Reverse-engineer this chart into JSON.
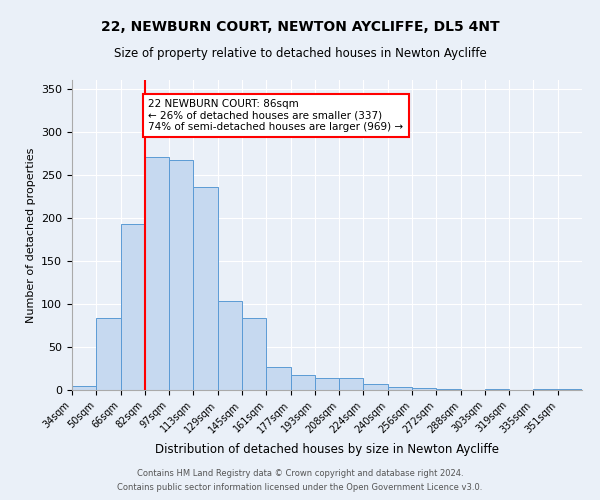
{
  "title": "22, NEWBURN COURT, NEWTON AYCLIFFE, DL5 4NT",
  "subtitle": "Size of property relative to detached houses in Newton Aycliffe",
  "xlabel": "Distribution of detached houses by size in Newton Aycliffe",
  "ylabel": "Number of detached properties",
  "bin_labels": [
    "34sqm",
    "50sqm",
    "66sqm",
    "82sqm",
    "97sqm",
    "113sqm",
    "129sqm",
    "145sqm",
    "161sqm",
    "177sqm",
    "193sqm",
    "208sqm",
    "224sqm",
    "240sqm",
    "256sqm",
    "272sqm",
    "288sqm",
    "303sqm",
    "319sqm",
    "335sqm",
    "351sqm"
  ],
  "bar_heights": [
    5,
    84,
    193,
    271,
    267,
    236,
    103,
    84,
    27,
    18,
    14,
    14,
    7,
    4,
    2,
    1,
    0,
    1,
    0,
    1,
    1
  ],
  "bar_color": "#c6d9f0",
  "bar_edge_color": "#5b9bd5",
  "vline_x_index": 3,
  "vline_color": "red",
  "annotation_title": "22 NEWBURN COURT: 86sqm",
  "annotation_line1": "← 26% of detached houses are smaller (337)",
  "annotation_line2": "74% of semi-detached houses are larger (969) →",
  "annotation_box_color": "red",
  "ylim": [
    0,
    360
  ],
  "yticks": [
    0,
    50,
    100,
    150,
    200,
    250,
    300,
    350
  ],
  "footer1": "Contains HM Land Registry data © Crown copyright and database right 2024.",
  "footer2": "Contains public sector information licensed under the Open Government Licence v3.0.",
  "bg_color": "#eaf0f8",
  "plot_bg_color": "#eaf0f8",
  "grid_color": "#ffffff",
  "title_fontsize": 10,
  "subtitle_fontsize": 8.5
}
